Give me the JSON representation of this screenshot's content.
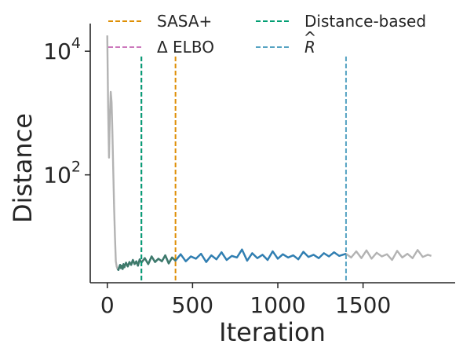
{
  "chart_data": {
    "type": "line",
    "title": "",
    "xlabel": "Iteration",
    "ylabel": "Distance",
    "xlim": [
      -100,
      2040
    ],
    "ylim": [
      1.8,
      28000
    ],
    "yscale": "log",
    "x_ticks": [
      0,
      500,
      1000,
      1500
    ],
    "x_tick_labels": [
      "0",
      "500",
      "1000",
      "1500"
    ],
    "y_ticks": [
      100,
      10000
    ],
    "y_tick_labels": [
      {
        "base": "10",
        "exp": "2"
      },
      {
        "base": "10",
        "exp": "4"
      }
    ],
    "grid": false,
    "legend_placement": "top (above plot, 2 columns)",
    "colors": {
      "full_trace": "#b3b3b3",
      "sasa_window": "#2f7fb3",
      "distance_window": "#3f7a6a",
      "sasa": "#de8f05",
      "elbo": "#cc78bc",
      "distance": "#029e73",
      "rhat": "#56a3c2"
    },
    "legend": [
      {
        "label": "SASA+",
        "color": "#de8f05",
        "type": "dashed"
      },
      {
        "label": "Δ ELBO",
        "color": "#cc78bc",
        "type": "dashed"
      },
      {
        "label": "Distance-based",
        "color": "#029e73",
        "type": "dashed"
      },
      {
        "label": "R",
        "hat": "^",
        "italic": true,
        "color": "#56a3c2",
        "type": "dashed"
      }
    ],
    "vertical_lines": [
      {
        "name": "SASA+",
        "x": 400,
        "color": "#de8f05"
      },
      {
        "name": "Δ ELBO",
        "x": 200,
        "color": "#cc78bc"
      },
      {
        "name": "Distance-based",
        "x": 200,
        "color": "#029e73"
      },
      {
        "name": "R",
        "x": 1400,
        "color": "#56a3c2"
      }
    ],
    "series": [
      {
        "x": [
          0,
          5,
          10,
          15,
          20,
          25,
          30,
          35,
          40,
          45,
          50,
          55,
          60,
          65,
          70,
          75,
          80,
          85,
          90,
          95,
          100,
          110,
          120,
          130,
          140,
          150,
          160,
          170,
          180,
          190,
          200,
          220,
          240,
          260,
          280,
          300,
          320,
          340,
          360,
          380,
          400,
          430,
          460,
          490,
          520,
          550,
          580,
          610,
          640,
          670,
          700,
          730,
          760,
          790,
          820,
          850,
          880,
          910,
          940,
          970,
          1000,
          1030,
          1060,
          1090,
          1120,
          1150,
          1180,
          1210,
          1240,
          1270,
          1300,
          1330,
          1360,
          1400,
          1430,
          1460,
          1490,
          1520,
          1550,
          1580,
          1610,
          1640,
          1670,
          1700,
          1730,
          1760,
          1790,
          1820,
          1850,
          1880,
          1900
        ],
        "y": [
          18000,
          1200,
          190,
          900,
          2200,
          1500,
          500,
          120,
          30,
          10,
          4,
          3.3,
          3.0,
          2.9,
          3.2,
          3.5,
          3.1,
          3.4,
          3.0,
          3.6,
          3.2,
          3.8,
          3.3,
          3.9,
          3.5,
          4.2,
          3.6,
          4.0,
          3.4,
          4.3,
          3.8,
          4.5,
          3.6,
          4.8,
          3.9,
          4.4,
          4.0,
          5.0,
          3.7,
          4.6,
          4.1,
          5.2,
          4.0,
          4.8,
          4.4,
          5.3,
          3.9,
          5.0,
          4.3,
          5.6,
          4.2,
          4.9,
          4.6,
          6.2,
          4.1,
          5.4,
          4.5,
          5.1,
          4.2,
          5.8,
          4.4,
          5.2,
          4.6,
          5.0,
          4.3,
          5.7,
          4.7,
          5.1,
          4.5,
          5.4,
          4.8,
          5.6,
          4.9,
          5.3,
          4.6,
          5.8,
          4.5,
          6.0,
          4.4,
          5.5,
          4.8,
          5.2,
          4.2,
          5.9,
          4.6,
          5.3,
          4.5,
          6.1,
          4.7,
          5.1,
          4.9
        ]
      }
    ]
  }
}
